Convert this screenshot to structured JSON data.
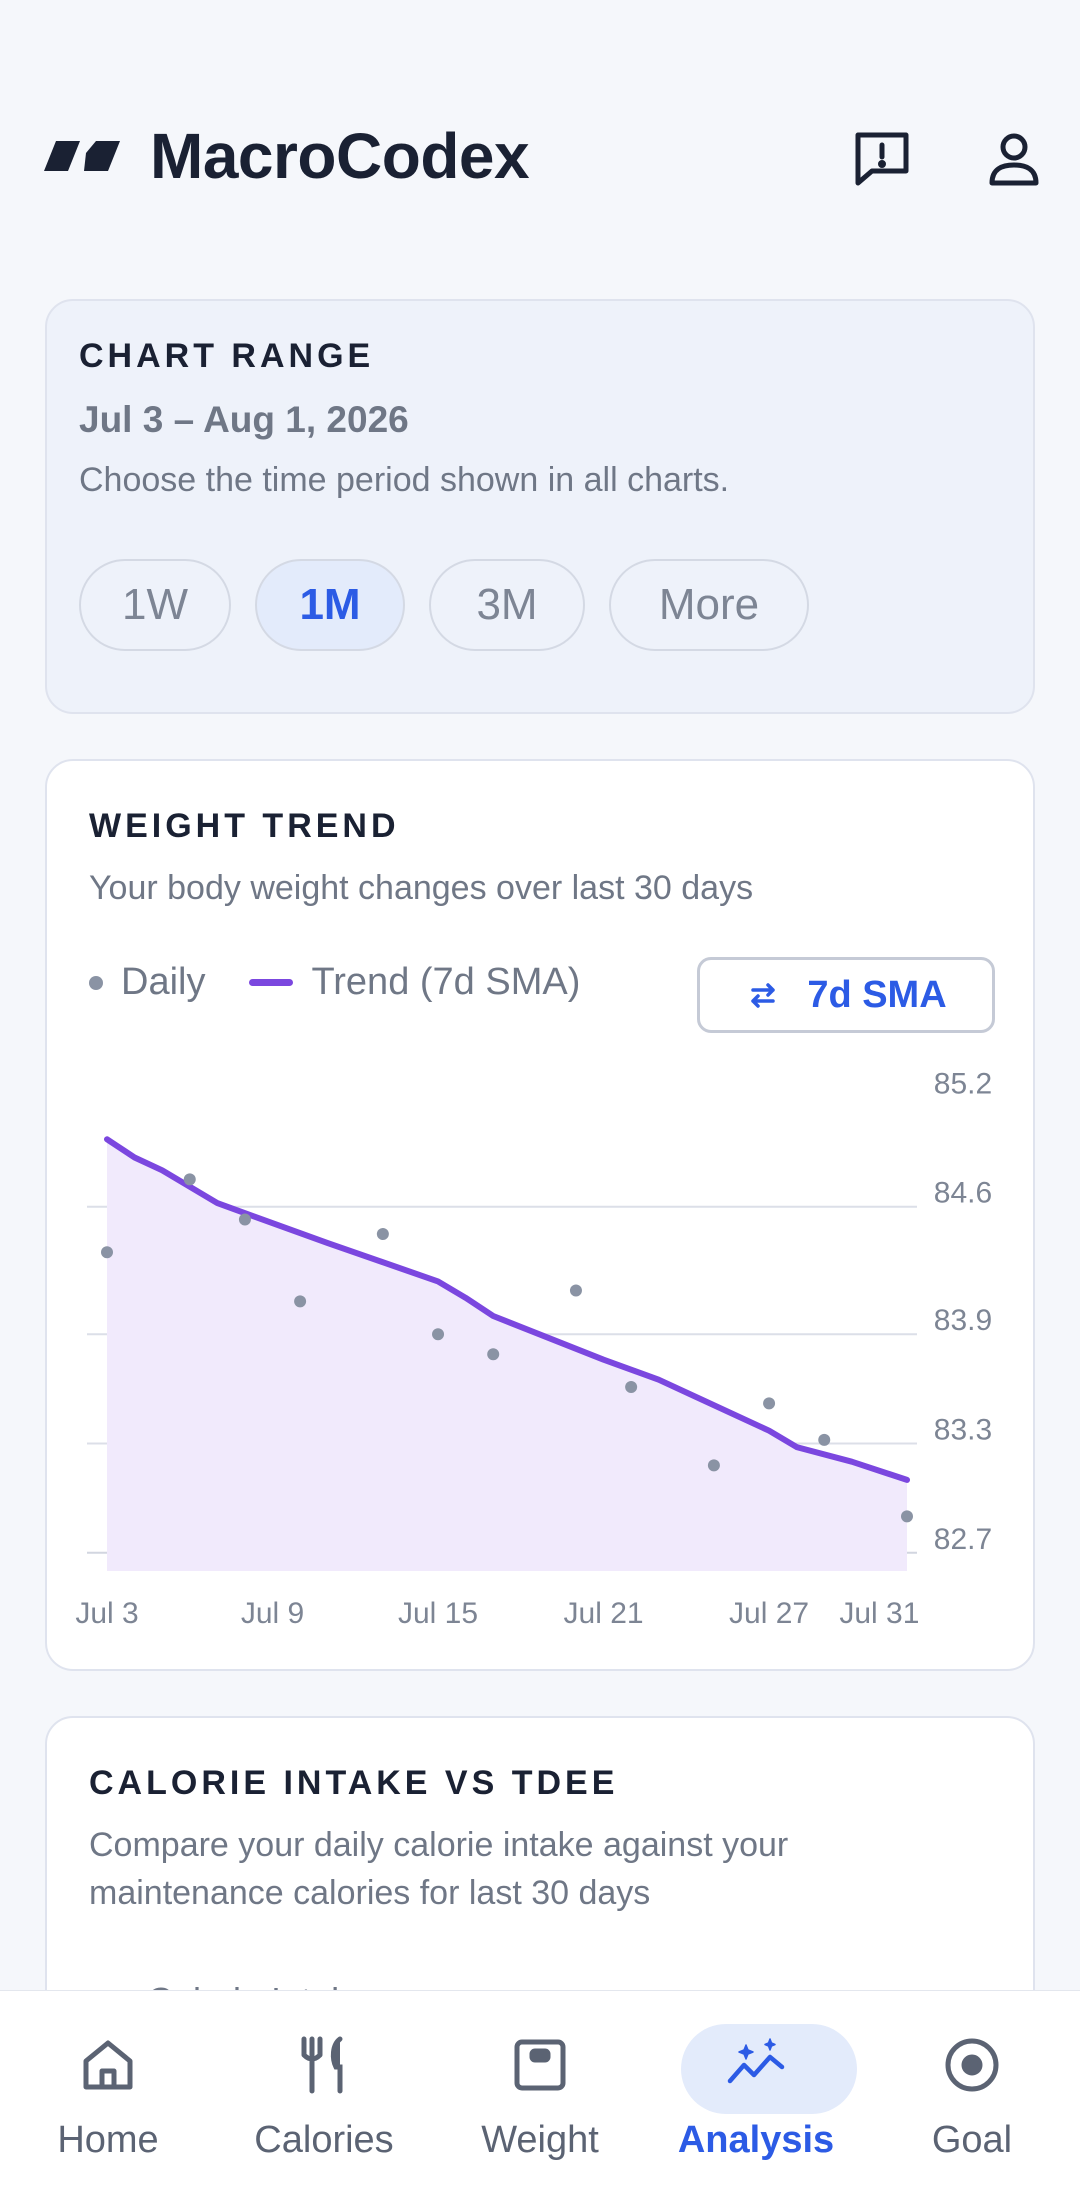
{
  "app": {
    "title": "MacroCodex"
  },
  "range": {
    "title": "CHART RANGE",
    "dates": "Jul 3 – Aug 1, 2026",
    "subtitle": "Choose the time period shown in all charts.",
    "options": [
      {
        "label": "1W",
        "active": false
      },
      {
        "label": "1M",
        "active": true
      },
      {
        "label": "3M",
        "active": false
      },
      {
        "label": "More",
        "active": false
      }
    ]
  },
  "weight": {
    "title": "WEIGHT TREND",
    "subtitle": "Your body weight changes over last 30 days",
    "legend_daily": "Daily",
    "legend_trend": "Trend (7d SMA)",
    "sma_button": "7d SMA"
  },
  "chart_data": {
    "type": "line",
    "title": "",
    "xlabel": "",
    "ylabel": "",
    "ylim": [
      82.6,
      85.4
    ],
    "y_ticks": [
      "85.2",
      "84.6",
      "83.9",
      "83.3",
      "82.7"
    ],
    "x_ticks": [
      "Jul 3",
      "Jul 9",
      "Jul 15",
      "Jul 21",
      "Jul 27",
      "Jul 31"
    ],
    "series": [
      {
        "name": "Daily",
        "style": "points",
        "color": "#8a93a4",
        "x": [
          "Jul 3",
          "Jul 6",
          "Jul 8",
          "Jul 10",
          "Jul 13",
          "Jul 15",
          "Jul 17",
          "Jul 20",
          "Jul 22",
          "Jul 25",
          "Jul 27",
          "Jul 29",
          "Aug 1"
        ],
        "y": [
          84.35,
          84.75,
          84.53,
          84.08,
          84.45,
          83.9,
          83.79,
          84.14,
          83.61,
          83.18,
          83.52,
          83.32,
          82.9
        ]
      },
      {
        "name": "Trend (7d SMA)",
        "style": "line",
        "color": "#7b47df",
        "x": [
          "Jul 3",
          "Jul 4",
          "Jul 5",
          "Jul 7",
          "Jul 11",
          "Jul 15",
          "Jul 16",
          "Jul 17",
          "Jul 21",
          "Jul 23",
          "Jul 27",
          "Jul 28",
          "Jul 30",
          "Aug 1"
        ],
        "y": [
          84.97,
          84.87,
          84.8,
          84.62,
          84.4,
          84.19,
          84.1,
          84.0,
          83.76,
          83.65,
          83.37,
          83.28,
          83.2,
          83.1
        ]
      }
    ]
  },
  "calorie": {
    "title": "CALORIE INTAKE VS TDEE",
    "subtitle_line1": "Compare your daily calorie intake against your",
    "subtitle_line2": "maintenance calories for last 30 days",
    "legend_intake": "Calorie Intake"
  },
  "nav": {
    "items": [
      {
        "label": "Home",
        "icon": "home-icon",
        "active": false
      },
      {
        "label": "Calories",
        "icon": "fork-knife-icon",
        "active": false
      },
      {
        "label": "Weight",
        "icon": "scale-icon",
        "active": false
      },
      {
        "label": "Analysis",
        "icon": "analysis-icon",
        "active": true
      },
      {
        "label": "Goal",
        "icon": "target-icon",
        "active": false
      }
    ]
  },
  "colors": {
    "accent": "#2c5be5",
    "trend": "#7b47df",
    "trend_fill": "#f1eafc",
    "intake": "#2fb36f"
  }
}
